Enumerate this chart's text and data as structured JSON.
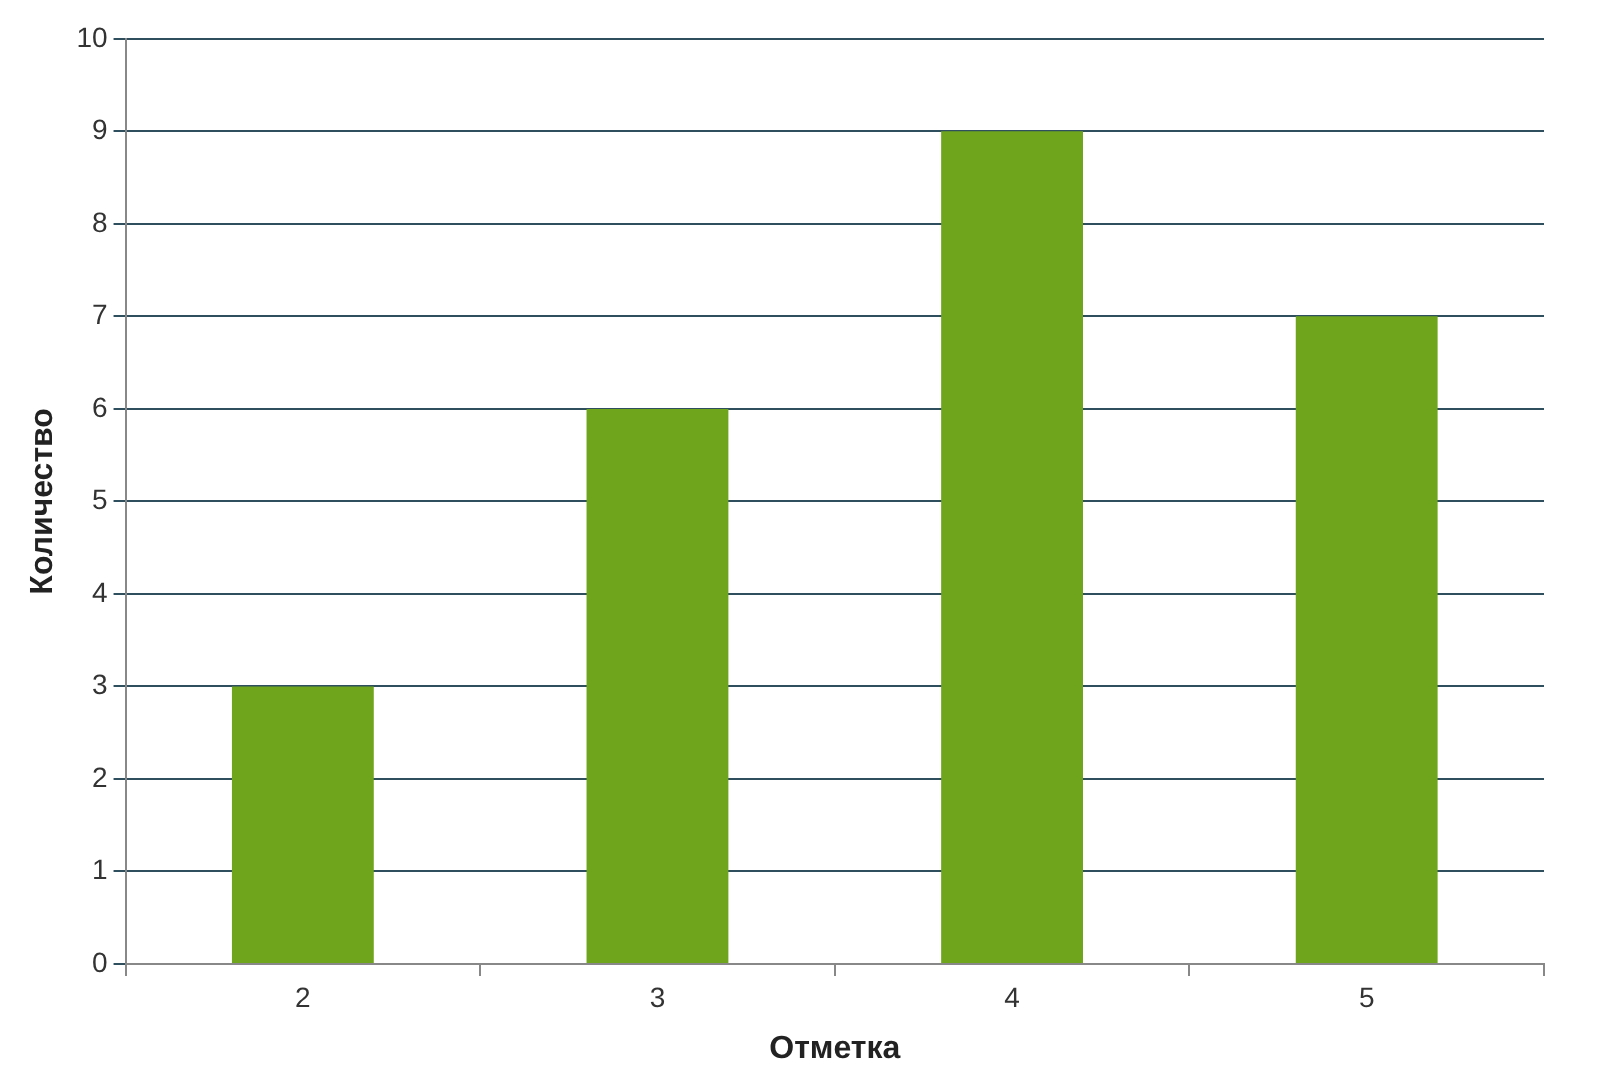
{
  "chart_data": {
    "type": "bar",
    "xlabel": "Отметка",
    "ylabel": "Количество",
    "categories": [
      "2",
      "3",
      "4",
      "5"
    ],
    "values": [
      3,
      6,
      9,
      7
    ],
    "color": "#6ea51c",
    "ylim": [
      0,
      10
    ],
    "yticks": [
      0,
      1,
      2,
      3,
      4,
      5,
      6,
      7,
      8,
      9,
      10
    ],
    "grid": "y"
  }
}
